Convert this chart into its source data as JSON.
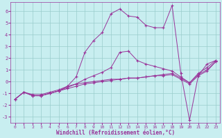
{
  "xlabel": "Windchill (Refroidissement éolien,°C)",
  "bg_color": "#c8eef0",
  "line_color": "#993399",
  "grid_color": "#99cccc",
  "xlim": [
    -0.5,
    23.5
  ],
  "ylim": [
    -3.5,
    6.8
  ],
  "xticks": [
    0,
    1,
    2,
    3,
    4,
    5,
    6,
    7,
    8,
    9,
    10,
    11,
    12,
    13,
    14,
    15,
    16,
    17,
    18,
    19,
    20,
    21,
    22,
    23
  ],
  "yticks": [
    -3,
    -2,
    -1,
    0,
    1,
    2,
    3,
    4,
    5,
    6
  ],
  "line1_x": [
    0,
    1,
    2,
    3,
    4,
    5,
    6,
    7,
    8,
    9,
    10,
    11,
    12,
    13,
    14,
    15,
    16,
    17,
    18,
    19,
    20,
    21,
    22,
    23
  ],
  "line1_y": [
    -1.5,
    -0.9,
    -1.1,
    -1.1,
    -0.9,
    -0.7,
    -0.4,
    -0.2,
    -0.1,
    0.0,
    0.1,
    0.2,
    0.2,
    0.3,
    0.3,
    0.4,
    0.5,
    0.5,
    0.6,
    0.2,
    -0.2,
    0.5,
    0.9,
    1.7
  ],
  "line2_x": [
    0,
    1,
    2,
    3,
    4,
    5,
    6,
    7,
    8,
    9,
    10,
    11,
    12,
    13,
    14,
    15,
    16,
    17,
    18,
    19,
    20,
    21,
    22,
    23
  ],
  "line2_y": [
    -1.5,
    -0.9,
    -1.2,
    -1.2,
    -1.0,
    -0.8,
    -0.6,
    -0.4,
    -0.2,
    -0.1,
    0.0,
    0.1,
    0.2,
    0.3,
    0.3,
    0.4,
    0.5,
    0.6,
    0.7,
    0.3,
    -0.1,
    0.6,
    1.0,
    1.7
  ],
  "line3_x": [
    0,
    1,
    2,
    3,
    4,
    5,
    6,
    7,
    8,
    9,
    10,
    11,
    12,
    13,
    14,
    15,
    16,
    17,
    18,
    19,
    20,
    21,
    22,
    23
  ],
  "line3_y": [
    -1.5,
    -0.9,
    -1.2,
    -1.2,
    -1.0,
    -0.8,
    -0.4,
    0.4,
    2.5,
    3.5,
    4.2,
    5.8,
    6.2,
    5.6,
    5.5,
    4.8,
    4.6,
    4.6,
    6.5,
    0.7,
    -3.3,
    0.5,
    1.5,
    1.8
  ],
  "line4_x": [
    0,
    1,
    2,
    3,
    4,
    5,
    6,
    7,
    8,
    9,
    10,
    11,
    12,
    13,
    14,
    15,
    16,
    17,
    18,
    19,
    20,
    21,
    22,
    23
  ],
  "line4_y": [
    -1.5,
    -0.9,
    -1.2,
    -1.2,
    -1.0,
    -0.8,
    -0.5,
    -0.2,
    0.2,
    0.5,
    0.8,
    1.2,
    2.5,
    2.6,
    1.8,
    1.5,
    1.3,
    1.1,
    0.9,
    0.4,
    -0.1,
    0.7,
    1.2,
    1.8
  ]
}
